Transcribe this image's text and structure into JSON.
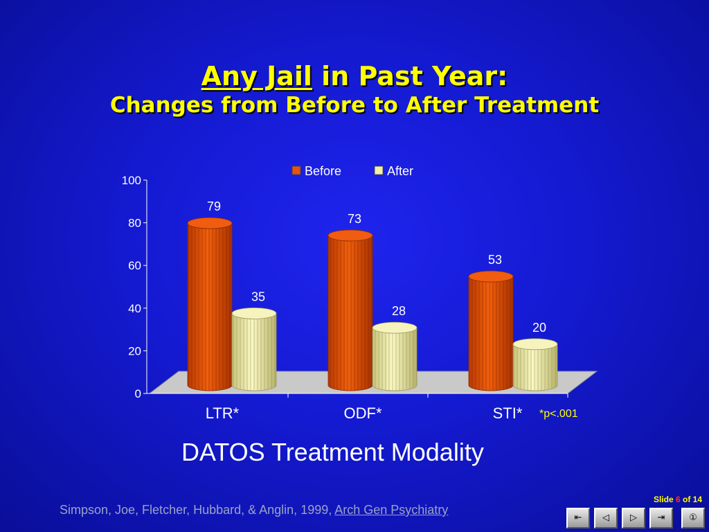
{
  "title": {
    "underlined": "Any Jail",
    "rest": " in Past Year:",
    "line2": "Changes from Before to After Treatment"
  },
  "chart_data": {
    "type": "bar",
    "categories": [
      "LTR*",
      "ODF*",
      "STI*"
    ],
    "series": [
      {
        "name": "Before",
        "values": [
          79,
          73,
          53
        ],
        "color": "#e8540a"
      },
      {
        "name": "After",
        "values": [
          35,
          28,
          20
        ],
        "color": "#f2f0a6"
      }
    ],
    "ylim": [
      0,
      100
    ],
    "yticks": [
      0,
      20,
      40,
      60,
      80,
      100
    ],
    "legend": "top",
    "xlabel": "DATOS Treatment Modality",
    "annotation": "*p<.001"
  },
  "footer": {
    "citation_prefix": "Simpson, Joe, Fletcher, Hubbard, & Anglin, 1999, ",
    "journal": "Arch Gen Psychiatry",
    "slide_label": "Slide ",
    "slide_current": "6",
    "slide_of": " of 14"
  },
  "nav": [
    "⇤",
    "◁",
    "▷",
    "⇥",
    "①"
  ]
}
